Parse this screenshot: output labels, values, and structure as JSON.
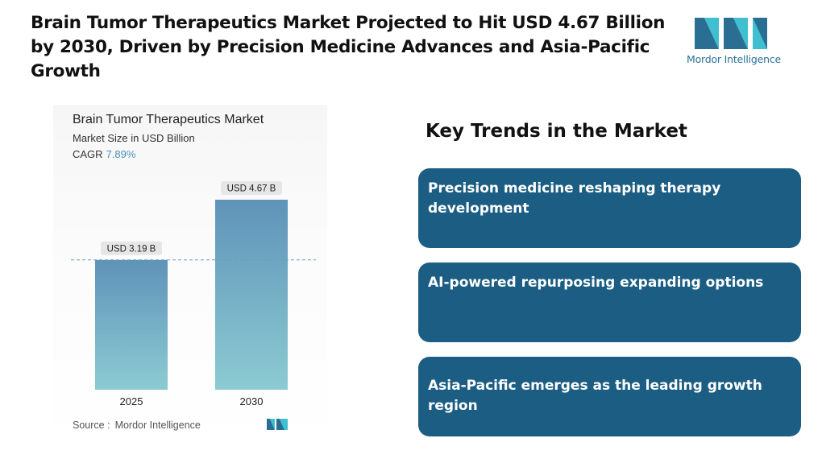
{
  "headline": "Brain Tumor Therapeutics Market Projected to Hit USD 4.67 Billion by 2030, Driven by Precision Medicine Advances and Asia-Pacific Growth",
  "logo": {
    "text": "Mordor Intelligence",
    "colors": {
      "dark": "#2a6f93",
      "light": "#3fbfd0"
    }
  },
  "chart_data": {
    "type": "bar",
    "title": "Brain Tumor Therapeutics Market",
    "subtitle": "Market Size in USD Billion",
    "cagr_label": "CAGR",
    "cagr_value": "7.89%",
    "categories": [
      "2025",
      "2030"
    ],
    "values": [
      3.19,
      4.67
    ],
    "value_labels": [
      "USD 3.19 B",
      "USD 4.67 B"
    ],
    "ylim": [
      0,
      4.67
    ],
    "grid": false,
    "reference_line": "dashed line at the 2025 value",
    "colors": {
      "bar_top": "#5f93b8",
      "bar_bottom": "#8ccbd2",
      "label_bg": "#e6e6e6",
      "dash": "#6a9fc0"
    },
    "source_label": "Source :",
    "source": "Mordor Intelligence"
  },
  "trends": {
    "title": "Key Trends in the Market",
    "items": [
      "Precision medicine reshaping therapy development",
      "AI-powered repurposing expanding options",
      "Asia-Pacific emerges as the leading growth region"
    ],
    "card_color": "#1c5e83"
  }
}
